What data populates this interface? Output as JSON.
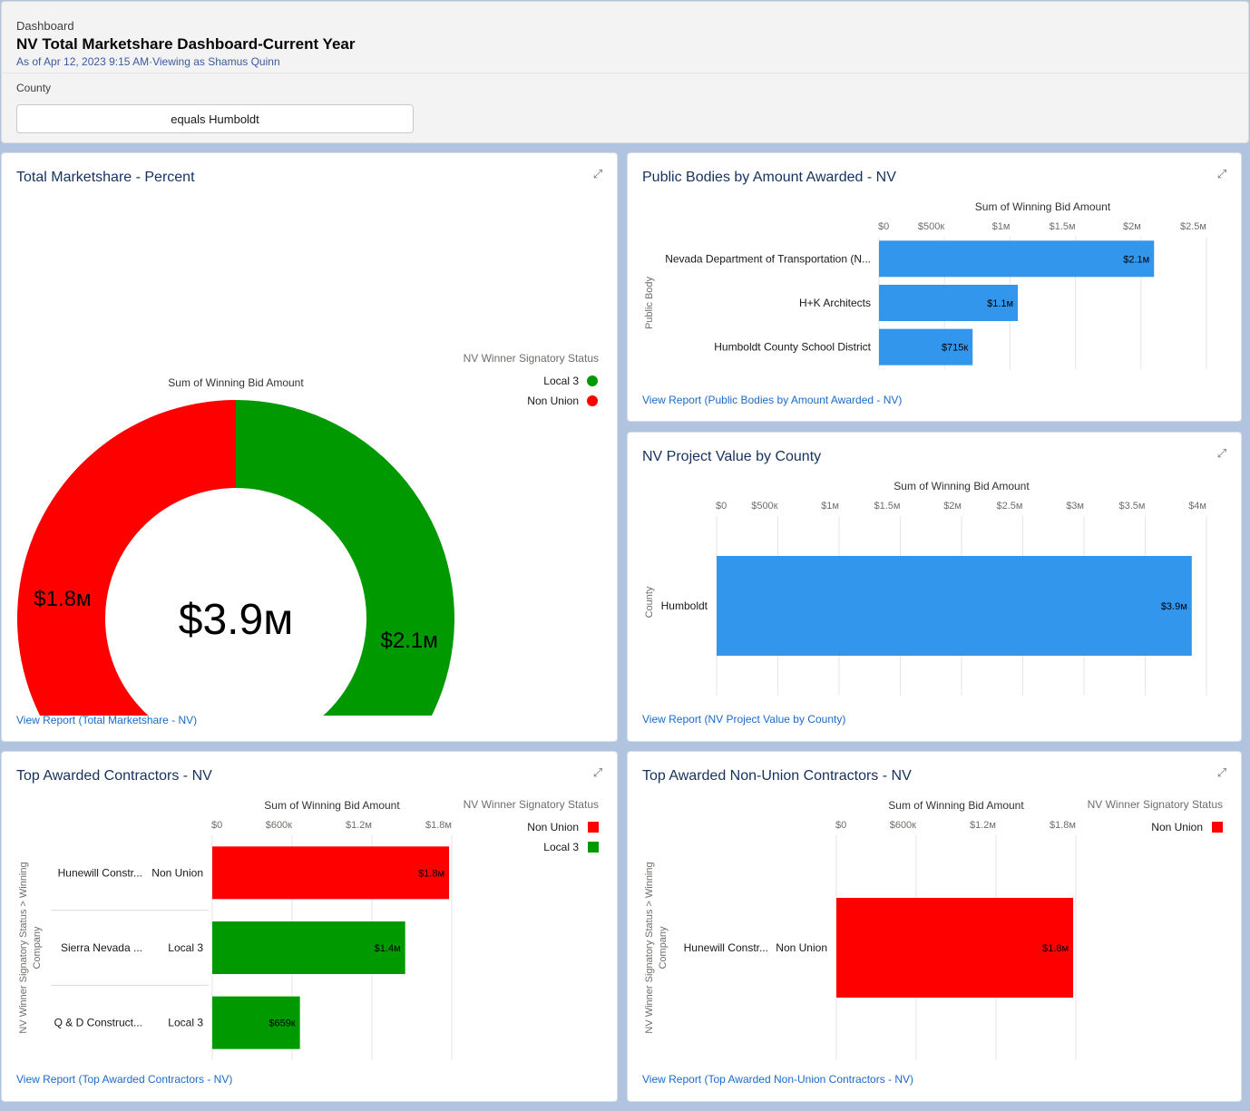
{
  "header": {
    "kicker": "Dashboard",
    "title": "NV Total Marketshare Dashboard-Current Year",
    "subtitle": "As of Apr 12, 2023 9:15 AM·Viewing as Shamus Quinn",
    "filter_label": "County",
    "filter_value": "equals Humboldt"
  },
  "colors": {
    "local3": "#009900",
    "non_union": "#ff0000",
    "bar_blue": "#3296ed",
    "link": "#1b6ac9"
  },
  "cards": {
    "marketshare": {
      "title": "Total Marketshare - Percent",
      "link": "View Report (Total Marketshare - NV)",
      "legend_title": "NV Winner Signatory Status",
      "legend": [
        "Local 3",
        "Non Union"
      ],
      "measure": "Sum of Winning Bid Amount",
      "center_label": "$3.9м"
    },
    "public_bodies": {
      "title": "Public Bodies by Amount Awarded - NV",
      "link": "View Report (Public Bodies by Amount Awarded - NV)"
    },
    "county": {
      "title": "NV Project Value by County",
      "link": "View Report (NV Project Value by County)"
    },
    "top_contractors": {
      "title": "Top Awarded Contractors - NV",
      "link": "View Report (Top Awarded Contractors - NV)",
      "legend_title": "NV Winner Signatory Status",
      "legend": [
        "Non Union",
        "Local 3"
      ]
    },
    "nonunion_contractors": {
      "title": "Top Awarded Non-Union Contractors - NV",
      "link": "View Report (Top Awarded Non-Union Contractors - NV)",
      "legend_title": "NV Winner Signatory Status",
      "legend": [
        "Non Union"
      ]
    }
  },
  "chart_data": [
    {
      "type": "pie",
      "title": "Total Marketshare - Percent",
      "measure": "Sum of Winning Bid Amount",
      "categories": [
        "Local 3",
        "Non Union"
      ],
      "values": [
        2.1,
        1.8
      ],
      "value_labels": [
        "$2.1м",
        "$1.8м"
      ],
      "total_label": "$3.9м",
      "legend_title": "NV Winner Signatory Status",
      "legend_placement": "top-right"
    },
    {
      "type": "bar",
      "orientation": "horizontal",
      "title": "Public Bodies by Amount Awarded - NV",
      "xlabel": "Sum of Winning Bid Amount",
      "ylabel": "Public Body",
      "categories": [
        "Nevada Department of Transportation (N...",
        "H+K Architects",
        "Humboldt County School District"
      ],
      "values": [
        2.1,
        1.06,
        0.715
      ],
      "value_labels": [
        "$2.1м",
        "$1.1м",
        "$715к"
      ],
      "xlim": [
        0,
        2.5
      ],
      "ticks": [
        0,
        0.5,
        1,
        1.5,
        2,
        2.5
      ],
      "tick_labels": [
        "$0",
        "$500к",
        "$1м",
        "$1.5м",
        "$2м",
        "$2.5м"
      ],
      "grid": true
    },
    {
      "type": "bar",
      "orientation": "horizontal",
      "title": "NV Project Value by County",
      "xlabel": "Sum of Winning Bid Amount",
      "ylabel": "County",
      "categories": [
        "Humboldt"
      ],
      "values": [
        3.88
      ],
      "value_labels": [
        "$3.9м"
      ],
      "xlim": [
        0,
        4
      ],
      "ticks": [
        0,
        0.5,
        1,
        1.5,
        2,
        2.5,
        3,
        3.5,
        4
      ],
      "tick_labels": [
        "$0",
        "$500к",
        "$1м",
        "$1.5м",
        "$2м",
        "$2.5м",
        "$3м",
        "$3.5м",
        "$4м"
      ],
      "grid": true
    },
    {
      "type": "bar",
      "orientation": "horizontal",
      "title": "Top Awarded Contractors - NV",
      "xlabel": "Sum of Winning Bid Amount",
      "ylabel": "NV Winner Signatory Status > Winning Company",
      "categories": [
        "Hunewill Constr...",
        "Sierra Nevada ...",
        "Q & D Construct..."
      ],
      "groups": [
        "Non Union",
        "Local 3",
        "Local 3"
      ],
      "values": [
        1.78,
        1.45,
        0.659
      ],
      "value_labels": [
        "$1.8м",
        "$1.4м",
        "$659к"
      ],
      "xlim": [
        0,
        1.8
      ],
      "ticks": [
        0,
        0.6,
        1.2,
        1.8
      ],
      "tick_labels": [
        "$0",
        "$600к",
        "$1.2м",
        "$1.8м"
      ],
      "legend_title": "NV Winner Signatory Status",
      "legend": [
        "Non Union",
        "Local 3"
      ],
      "legend_placement": "top-right",
      "grid": true
    },
    {
      "type": "bar",
      "orientation": "horizontal",
      "title": "Top Awarded Non-Union Contractors - NV",
      "xlabel": "Sum of Winning Bid Amount",
      "ylabel": "NV Winner Signatory Status > Winning Company",
      "categories": [
        "Hunewill Constr..."
      ],
      "groups": [
        "Non Union"
      ],
      "values": [
        1.78
      ],
      "value_labels": [
        "$1.8м"
      ],
      "xlim": [
        0,
        1.8
      ],
      "ticks": [
        0,
        0.6,
        1.2,
        1.8
      ],
      "tick_labels": [
        "$0",
        "$600к",
        "$1.2м",
        "$1.8м"
      ],
      "legend_title": "NV Winner Signatory Status",
      "legend": [
        "Non Union"
      ],
      "legend_placement": "top-right",
      "grid": true
    }
  ]
}
